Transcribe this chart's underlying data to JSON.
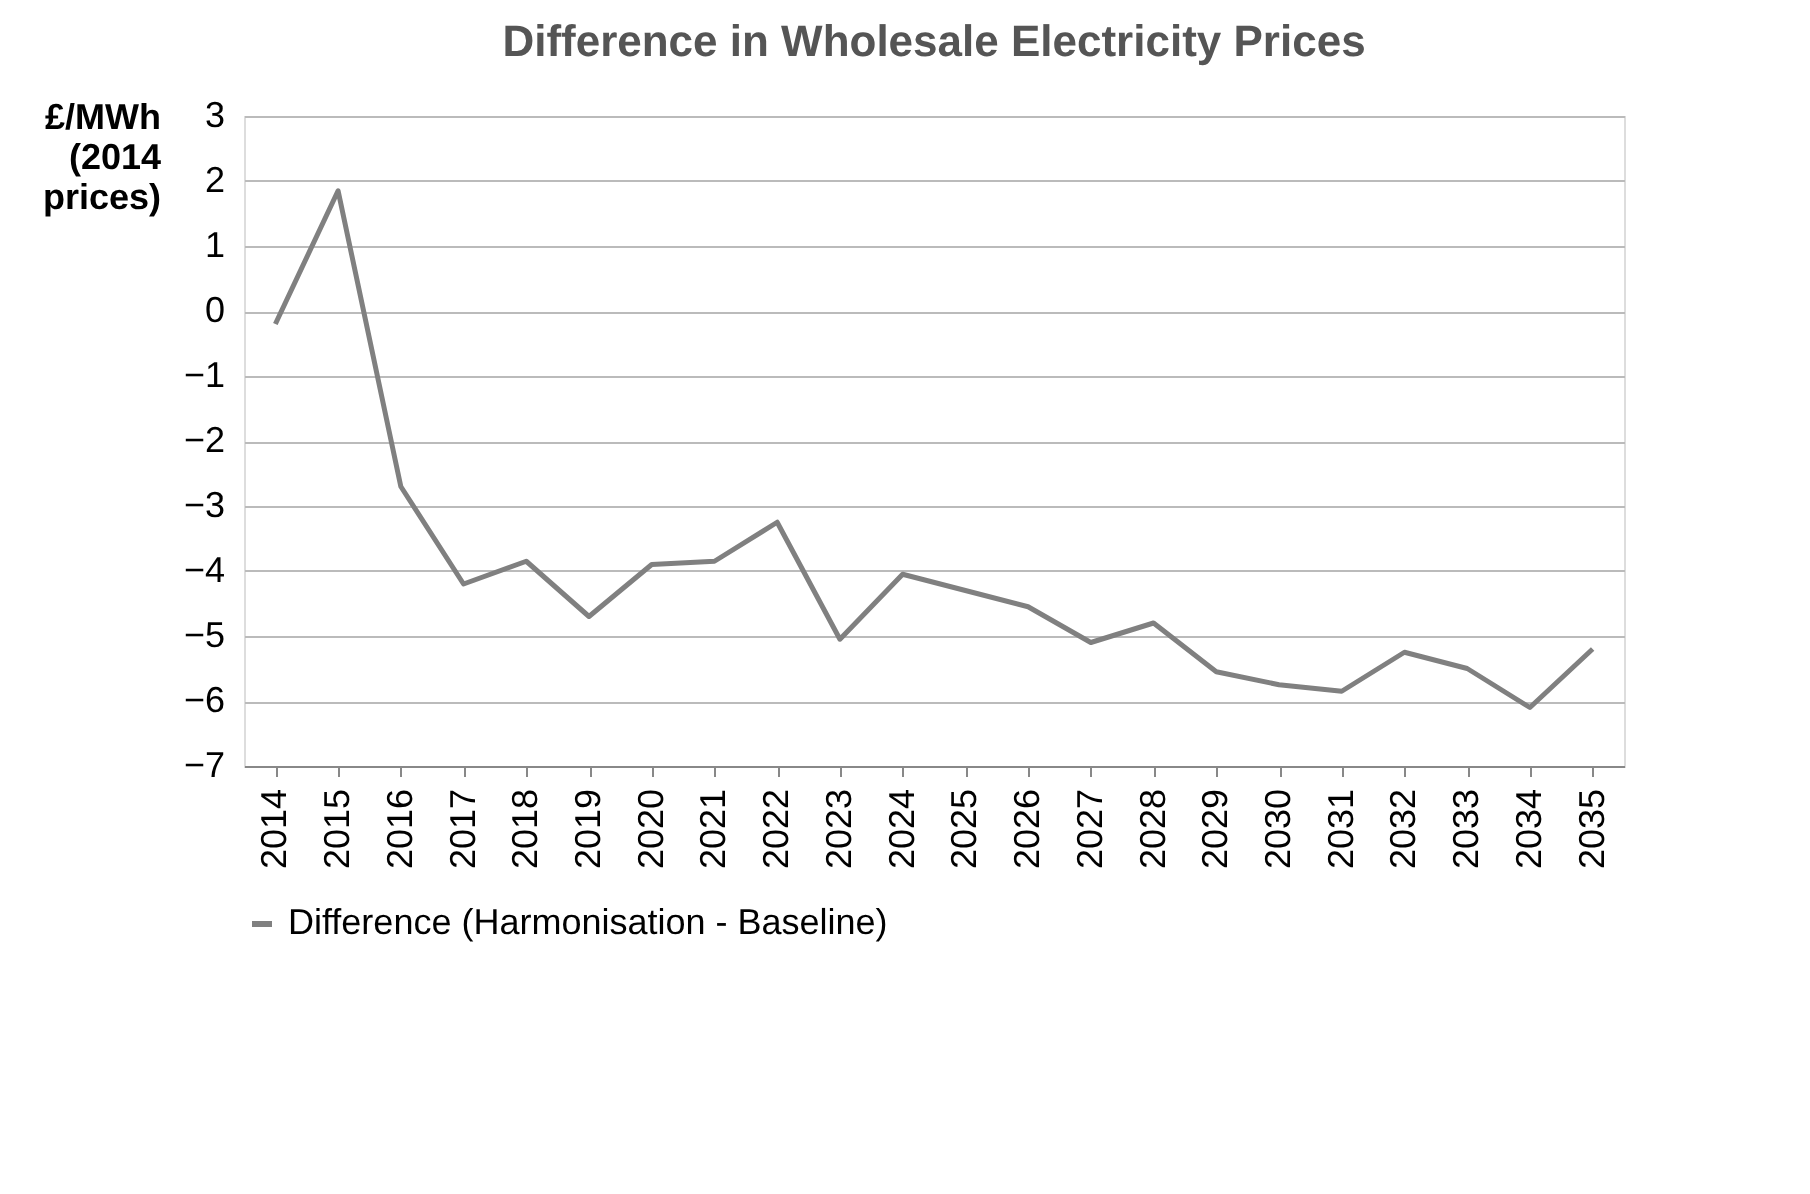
{
  "chart_data": {
    "type": "line",
    "title": "Difference in Wholesale Electricity Prices",
    "ylabel": "£/MWh (2014 prices)",
    "categories": [
      "2014",
      "2015",
      "2016",
      "2017",
      "2018",
      "2019",
      "2020",
      "2021",
      "2022",
      "2023",
      "2024",
      "2025",
      "2026",
      "2027",
      "2028",
      "2029",
      "2030",
      "2031",
      "2032",
      "2033",
      "2034",
      "2035"
    ],
    "series": [
      {
        "name": "Difference    (Harmonisation - Baseline)",
        "color": "#808080",
        "values": [
          -0.2,
          1.85,
          -2.7,
          -4.2,
          -3.85,
          -4.7,
          -3.9,
          -3.85,
          -3.25,
          -5.05,
          -4.05,
          -4.3,
          -4.55,
          -5.1,
          -4.8,
          -5.55,
          -5.75,
          -5.85,
          -5.25,
          -5.5,
          -6.1,
          -5.2
        ]
      }
    ],
    "ylim": [
      -7,
      3
    ],
    "yticks": [
      -7,
      -6,
      -5,
      -4,
      -3,
      -2,
      -1,
      0,
      1,
      2,
      3
    ],
    "grid": "y",
    "legend": "bottom",
    "marker": "none",
    "line_style": "solid"
  }
}
